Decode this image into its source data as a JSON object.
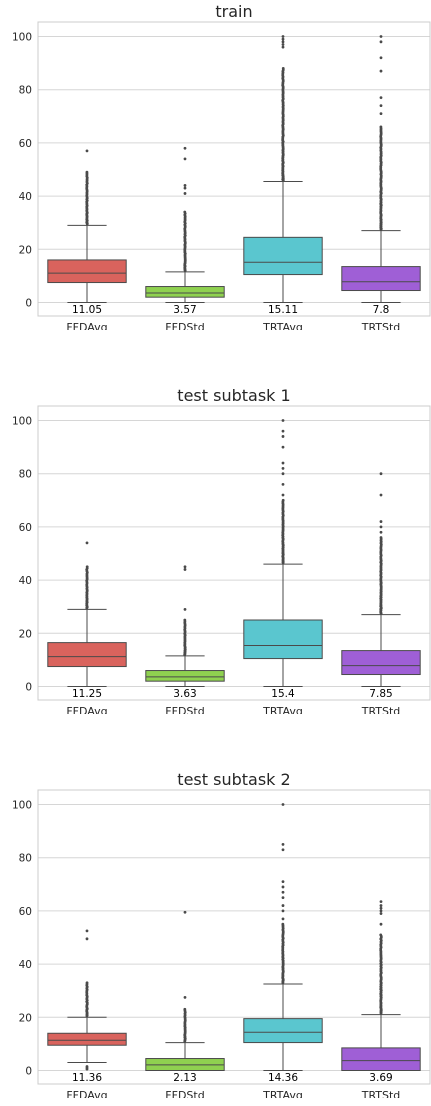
{
  "chart_data": [
    {
      "type": "box",
      "title": "train",
      "xlabel": "",
      "ylabel": "",
      "ylim": [
        -5,
        102
      ],
      "yticks": [
        0,
        20,
        40,
        60,
        80,
        100
      ],
      "grid": true,
      "categories": [
        "FFDAvg",
        "FFDStd",
        "TRTAvg",
        "TRTStd"
      ],
      "median_labels": [
        "11.05",
        "3.57",
        "15.11",
        "7.8"
      ],
      "boxes": [
        {
          "name": "FFDAvg",
          "color": "#d9635d",
          "whisker_low": 0,
          "q1": 7.5,
          "median": 11.05,
          "q3": 16,
          "whisker_high": 29,
          "outliers_from": 29.5,
          "outliers_to": 49,
          "far_outliers": [
            57
          ]
        },
        {
          "name": "FFDStd",
          "color": "#8fd150",
          "whisker_low": 0,
          "q1": 2,
          "median": 3.57,
          "q3": 6,
          "whisker_high": 11.5,
          "outliers_from": 12,
          "outliers_to": 34,
          "far_outliers": [
            41,
            43,
            44,
            54,
            58
          ]
        },
        {
          "name": "TRTAvg",
          "color": "#5ac6cf",
          "whisker_low": 0,
          "q1": 10.5,
          "median": 15.11,
          "q3": 24.5,
          "whisker_high": 45.5,
          "outliers_from": 46,
          "outliers_to": 88,
          "far_outliers": [
            96,
            97,
            98,
            99,
            100
          ]
        },
        {
          "name": "TRTStd",
          "color": "#9f5fd6",
          "whisker_low": 0,
          "q1": 4.5,
          "median": 7.8,
          "q3": 13.5,
          "whisker_high": 27,
          "outliers_from": 27.5,
          "outliers_to": 66,
          "far_outliers": [
            71,
            74,
            77,
            87,
            92,
            98,
            100
          ]
        }
      ]
    },
    {
      "type": "box",
      "title": "test subtask 1",
      "xlabel": "",
      "ylabel": "",
      "ylim": [
        -5,
        102
      ],
      "yticks": [
        0,
        20,
        40,
        60,
        80,
        100
      ],
      "grid": true,
      "categories": [
        "FFDAvg",
        "FFDStd",
        "TRTAvg",
        "TRTStd"
      ],
      "median_labels": [
        "11.25",
        "3.63",
        "15.4",
        "7.85"
      ],
      "boxes": [
        {
          "name": "FFDAvg",
          "color": "#d9635d",
          "whisker_low": 0,
          "q1": 7.5,
          "median": 11.25,
          "q3": 16.5,
          "whisker_high": 29,
          "outliers_from": 29.5,
          "outliers_to": 45,
          "far_outliers": [
            54
          ]
        },
        {
          "name": "FFDStd",
          "color": "#8fd150",
          "whisker_low": 0,
          "q1": 2,
          "median": 3.63,
          "q3": 6,
          "whisker_high": 11.5,
          "outliers_from": 12,
          "outliers_to": 25,
          "far_outliers": [
            29,
            44,
            45
          ]
        },
        {
          "name": "TRTAvg",
          "color": "#5ac6cf",
          "whisker_low": 0,
          "q1": 10.5,
          "median": 15.4,
          "q3": 25,
          "whisker_high": 46,
          "outliers_from": 46.5,
          "outliers_to": 70,
          "far_outliers": [
            72,
            76,
            80,
            82,
            84,
            90,
            94,
            96,
            100
          ]
        },
        {
          "name": "TRTStd",
          "color": "#9f5fd6",
          "whisker_low": 0,
          "q1": 4.5,
          "median": 7.85,
          "q3": 13.5,
          "whisker_high": 27,
          "outliers_from": 27.5,
          "outliers_to": 56,
          "far_outliers": [
            58,
            60,
            62,
            72,
            80
          ]
        }
      ]
    },
    {
      "type": "box",
      "title": "test subtask 2",
      "xlabel": "",
      "ylabel": "",
      "ylim": [
        -5,
        102
      ],
      "yticks": [
        0,
        20,
        40,
        60,
        80,
        100
      ],
      "grid": true,
      "categories": [
        "FFDAvg",
        "FFDStd",
        "TRTAvg",
        "TRTStd"
      ],
      "median_labels": [
        "11.36",
        "2.13",
        "14.36",
        "3.69"
      ],
      "boxes": [
        {
          "name": "FFDAvg",
          "color": "#d9635d",
          "whisker_low": 3,
          "q1": 9.5,
          "median": 11.36,
          "q3": 14,
          "whisker_high": 20,
          "outliers_from": 20.5,
          "outliers_to": 33,
          "far_outliers": [
            0.5,
            1,
            1.5,
            49.5,
            52.5
          ]
        },
        {
          "name": "FFDStd",
          "color": "#8fd150",
          "whisker_low": 0,
          "q1": 0,
          "median": 2.13,
          "q3": 4.5,
          "whisker_high": 10.5,
          "outliers_from": 11,
          "outliers_to": 23,
          "far_outliers": [
            27.5,
            59.5
          ]
        },
        {
          "name": "TRTAvg",
          "color": "#5ac6cf",
          "whisker_low": 0,
          "q1": 10.5,
          "median": 14.36,
          "q3": 19.5,
          "whisker_high": 32.5,
          "outliers_from": 33,
          "outliers_to": 55,
          "far_outliers": [
            57,
            60,
            62,
            65,
            67,
            69,
            71,
            83,
            85,
            100
          ]
        },
        {
          "name": "TRTStd",
          "color": "#9f5fd6",
          "whisker_low": 0,
          "q1": 0,
          "median": 3.69,
          "q3": 8.5,
          "whisker_high": 21,
          "outliers_from": 21.5,
          "outliers_to": 51,
          "far_outliers": [
            55,
            59,
            60,
            61,
            62,
            63.5
          ]
        }
      ]
    }
  ]
}
